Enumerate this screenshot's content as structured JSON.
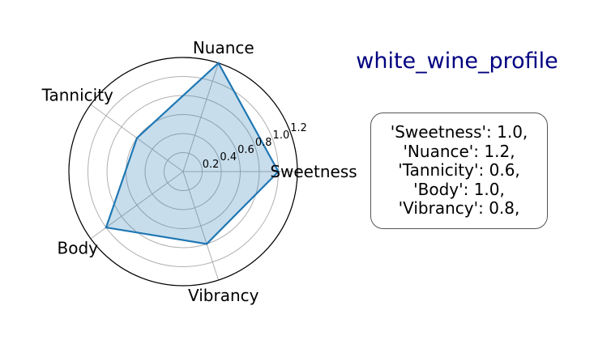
{
  "chart_data": {
    "type": "radar",
    "title": "white_wine_profile",
    "categories": [
      "Sweetness",
      "Nuance",
      "Tannicity",
      "Body",
      "Vibrancy"
    ],
    "series": [
      {
        "values": [
          1.0,
          1.2,
          0.6,
          1.0,
          0.8
        ]
      }
    ],
    "rlim": [
      0,
      1.2
    ],
    "radial_ticks": [
      0.2,
      0.4,
      0.6,
      0.8,
      1.0,
      1.2
    ],
    "radial_tick_labels": [
      "0.2",
      "0.4",
      "0.6",
      "0.8",
      "1.0",
      "1.2"
    ],
    "grid": true,
    "colors": {
      "line": "#1f77b4",
      "fill": "#1f77b4",
      "title": "#000080",
      "grid": "#b0b0b0"
    }
  },
  "values_box": {
    "lines": [
      "'Sweetness': 1.0,",
      "'Nuance': 1.2,",
      "'Tannicity': 0.6,",
      "'Body': 1.0,",
      "'Vibrancy': 0.8,"
    ]
  }
}
